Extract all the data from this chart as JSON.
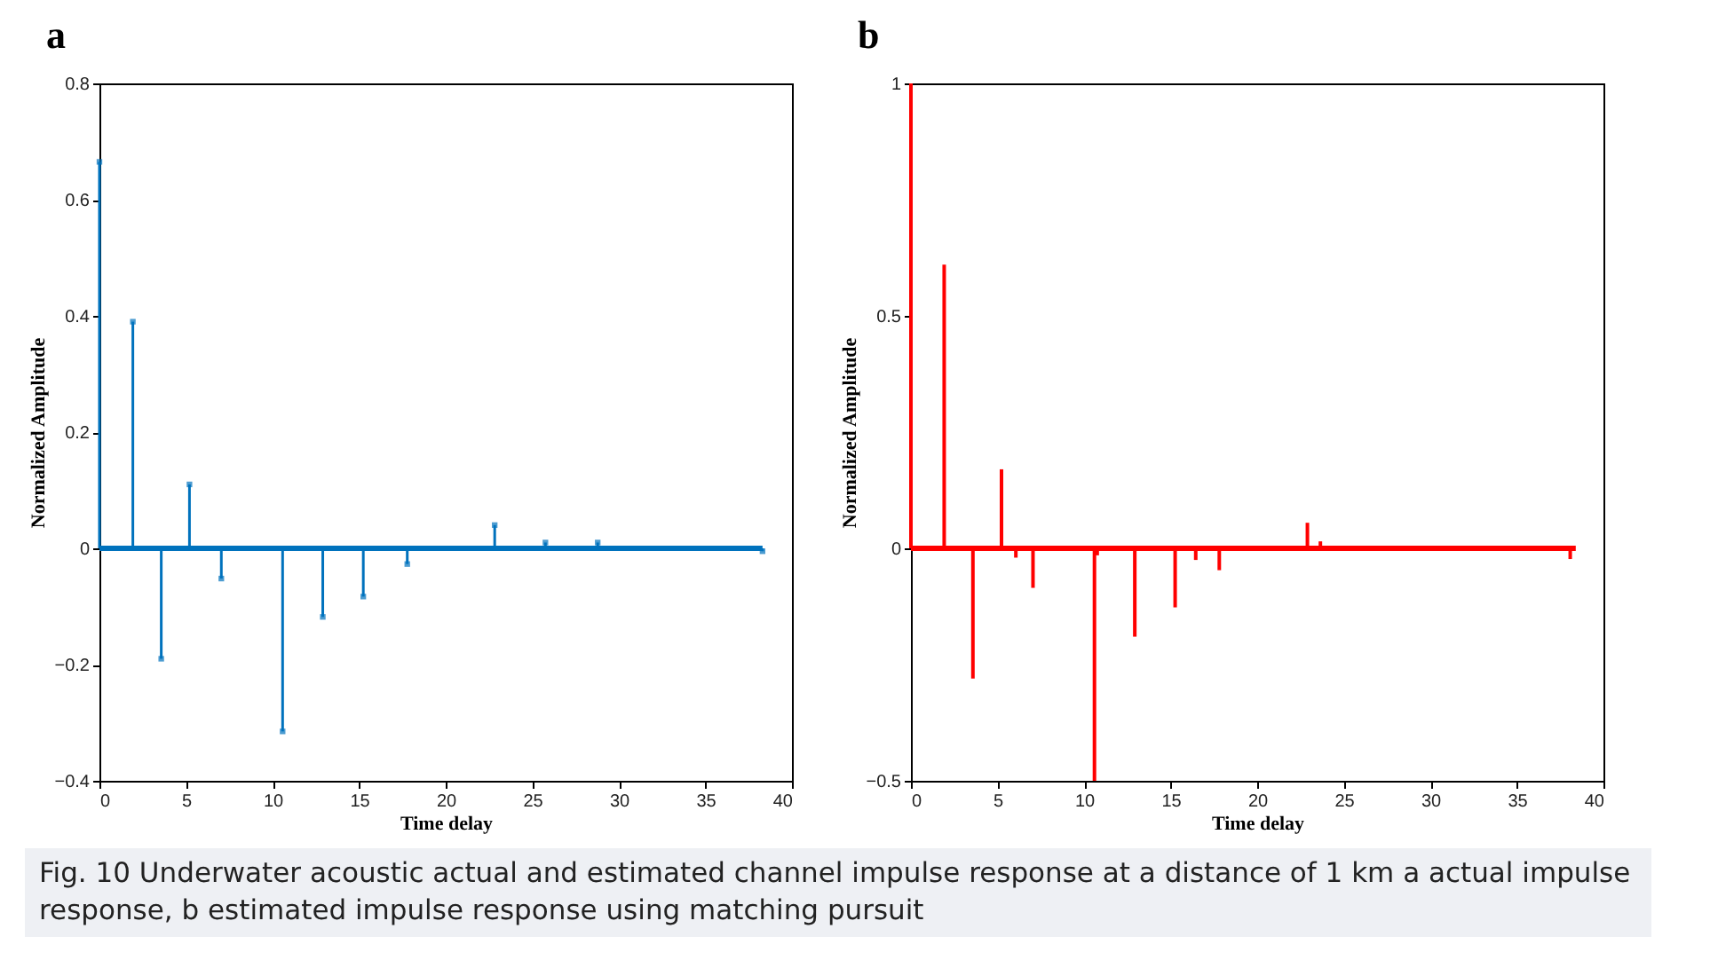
{
  "chart_data": [
    {
      "type": "lollipop",
      "title": "a",
      "xlabel": "Time delay",
      "ylabel": "Normalized Amplitude",
      "grid": false,
      "series": [
        {
          "color": "#0072bd",
          "marker": "square",
          "x": [
            0,
            1.93,
            3.57,
            5.2,
            7.04,
            10.58,
            12.9,
            15.24,
            17.78,
            22.83,
            25.76,
            28.78,
            38.3
          ],
          "values": [
            0.665,
            0.39,
            -0.19,
            0.11,
            -0.052,
            -0.315,
            -0.118,
            -0.083,
            -0.027,
            0.04,
            0.01,
            0.01,
            -0.005
          ]
        },
        {
          "type": "line",
          "color": "#0072bd",
          "marker": "none",
          "x": [
            0,
            38.3
          ],
          "values": [
            0,
            0
          ]
        }
      ],
      "xlim": [
        0,
        40
      ],
      "xticks": [
        0,
        5,
        10,
        15,
        20,
        25,
        30,
        35,
        40
      ],
      "ylim": [
        -0.4,
        0.8
      ],
      "yticks": [
        -0.4,
        -0.2,
        0,
        0.2,
        0.4,
        0.6,
        0.8
      ]
    },
    {
      "type": "bar",
      "title": "b",
      "xlabel": "Time delay",
      "ylabel": "Normalized Amplitude",
      "grid": false,
      "series": [
        {
          "color": "#ff0000",
          "x": [
            0,
            1.92,
            3.58,
            5.23,
            6.06,
            7.05,
            10.6,
            10.76,
            12.93,
            15.26,
            16.45,
            17.81,
            22.9,
            23.65,
            38.08
          ],
          "values": [
            1,
            0.61,
            -0.28,
            0.17,
            -0.02,
            -0.085,
            -0.5,
            -0.015,
            -0.19,
            -0.127,
            -0.025,
            -0.047,
            0.055,
            0.015,
            -0.023
          ]
        },
        {
          "type": "line",
          "color": "#ff0000",
          "x": [
            0,
            38.4
          ],
          "values": [
            0,
            0
          ]
        }
      ],
      "xlim": [
        0,
        40
      ],
      "xticks": [
        0,
        5,
        10,
        15,
        20,
        25,
        30,
        35,
        40
      ],
      "ylim": [
        -0.5,
        1
      ],
      "yticks": [
        -0.5,
        0,
        0.5,
        1
      ],
      "annotations": [
        "Fig. 10  Underwater acoustic actual and estimated channel impulse response at a distance of 1 km a actual impulse response, b estimated impulse response using matching pursuit"
      ]
    }
  ]
}
